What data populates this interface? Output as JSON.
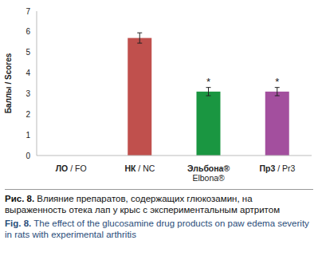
{
  "chart_data": {
    "type": "bar",
    "title": "Рис. 8. Влияние препаратов, содержащих глюкозамин, на выраженность отека лап у крыс с экспериментальным артритом",
    "subtitle": "Fig. 8. The effect of the glucosamine drug products on paw edema severity in rats with experimental arthritis",
    "y_label": "Баллы / Scores",
    "categories": [
      "ЛО / FO",
      "НК / NC",
      "Эльбона® Elbona®",
      "Пр3 / Pr3"
    ],
    "values": [
      0,
      5.7,
      3.1,
      3.1
    ],
    "errors": [
      null,
      0.25,
      0.2,
      0.2
    ],
    "annotations": [
      null,
      null,
      "*",
      "*"
    ],
    "colors": [
      "#808080",
      "#c0504d",
      "#1a9641",
      "#a34f9e"
    ],
    "ylim": [
      0,
      7
    ],
    "yticks": [
      0,
      1,
      2,
      3,
      4,
      5,
      6,
      7
    ],
    "grid": false
  }
}
